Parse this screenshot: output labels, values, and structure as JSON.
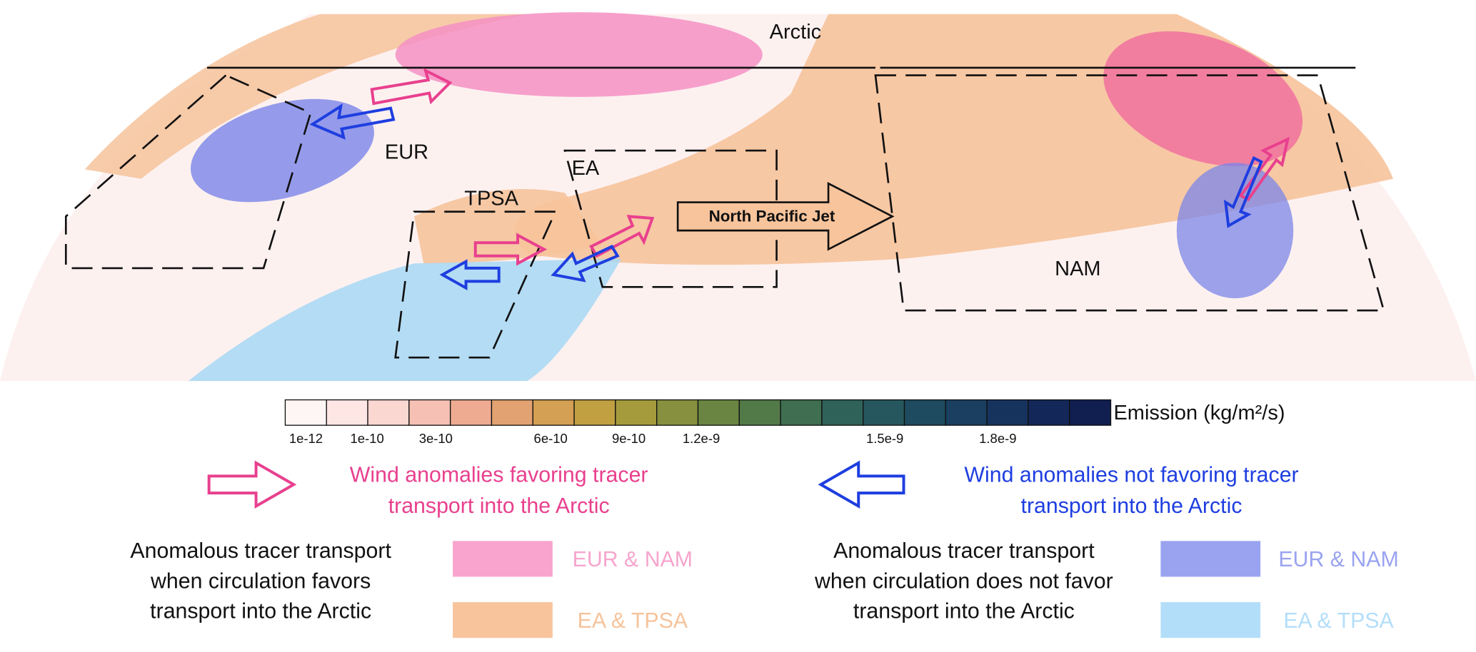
{
  "map": {
    "labels": {
      "arctic": "Arctic",
      "eur": "EUR",
      "ea": "EA",
      "tpsa": "TPSA",
      "nam": "NAM",
      "jet": "North Pacific Jet"
    }
  },
  "colorbar": {
    "title": "Emission (kg/m²/s)",
    "tick_labels": [
      "1e-12",
      "1e-10",
      "3e-10",
      "6e-10",
      "9e-10",
      "1.2e-9",
      "1.5e-9",
      "1.8e-9"
    ]
  },
  "legend": {
    "favoring": {
      "lines": [
        "Wind anomalies favoring tracer",
        "transport into the Arctic"
      ]
    },
    "not_favoring": {
      "lines": [
        "Wind anomalies not favoring tracer",
        "transport into the Arctic"
      ]
    },
    "transport_favor": {
      "lines": [
        "Anomalous tracer transport",
        "when circulation favors",
        "transport into the Arctic"
      ],
      "swatches": [
        "EUR & NAM",
        "EA & TPSA"
      ]
    },
    "transport_not_favor": {
      "lines": [
        "Anomalous tracer transport",
        "when circulation does not favor",
        "transport into the Arctic"
      ],
      "swatches": [
        "EUR & NAM",
        "EA & TPSA"
      ]
    }
  }
}
